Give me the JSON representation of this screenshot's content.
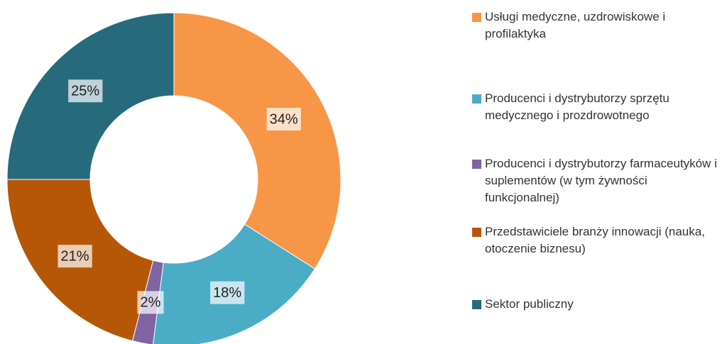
{
  "chart_data": {
    "type": "donut",
    "series": [
      {
        "name": "Usługi medyczne, uzdrowiskowe i profilaktyka",
        "color": "#f79646"
      },
      {
        "name": "Producenci i dystrybutorzy sprzętu medycznego i prozdrowotnego",
        "color": "#4bacc6"
      },
      {
        "name": "Producenci i dystrybutorzy farmaceutyków i suplementów (w tym żywności funkcjonalnej)",
        "color": "#8064a2"
      },
      {
        "name": "Przedstawiciele branży innowacji (nauka, otoczenie biznesu)",
        "color": "#b65708"
      },
      {
        "name": "Sektor publiczny",
        "color": "#276a7c"
      }
    ],
    "values": [
      34,
      18,
      2,
      21,
      25
    ],
    "value_labels": [
      "34%",
      "18%",
      "2%",
      "21%",
      "25%"
    ],
    "legend": "right"
  }
}
